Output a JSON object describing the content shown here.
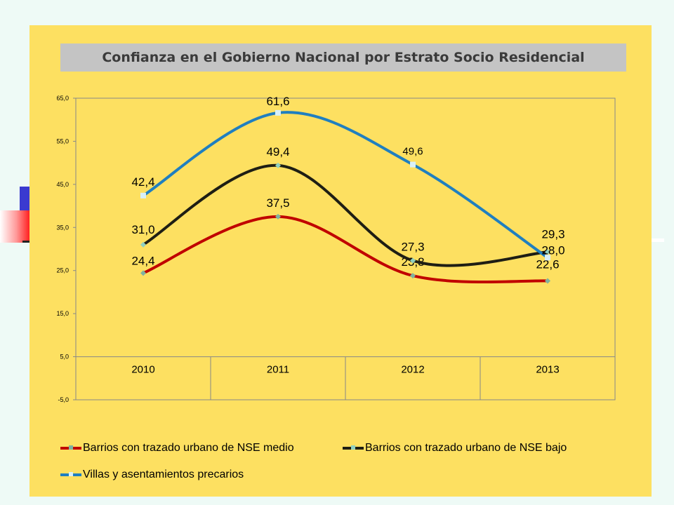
{
  "chart_data": {
    "type": "line",
    "title": "Confianza en el Gobierno Nacional por Estrato Socio Residencial",
    "categories": [
      "2010",
      "2011",
      "2012",
      "2013"
    ],
    "ylim": [
      -5,
      65
    ],
    "yticks": [
      "-5,0",
      "5,0",
      "15,0",
      "25,0",
      "35,0",
      "45,0",
      "55,0",
      "65,0"
    ],
    "ytick_values": [
      -5,
      5,
      15,
      25,
      35,
      45,
      55,
      65
    ],
    "grid": false,
    "legend_position": "bottom",
    "series": [
      {
        "name": "Barrios con trazado urbano de NSE medio",
        "color": "#c00000",
        "marker_color": "#7fb3a0",
        "values": [
          24.4,
          37.5,
          23.8,
          22.6
        ],
        "labels": [
          "24,4",
          "37,5",
          "23,8",
          "22,6"
        ]
      },
      {
        "name": "Barrios con trazado urbano de NSE bajo",
        "color": "#1e1e14",
        "marker_color": "#8fd0c0",
        "values": [
          31.0,
          49.4,
          27.3,
          29.3
        ],
        "labels": [
          "31,0",
          "49,4",
          "27,3",
          "29,3"
        ]
      },
      {
        "name": "Villas y asentamientos precarios",
        "color": "#1f7fc0",
        "marker_color": "#d8f0f8",
        "values": [
          42.4,
          61.6,
          49.6,
          28.0
        ],
        "labels": [
          "42,4",
          "61,6",
          "49,6",
          "28,0"
        ]
      }
    ]
  }
}
